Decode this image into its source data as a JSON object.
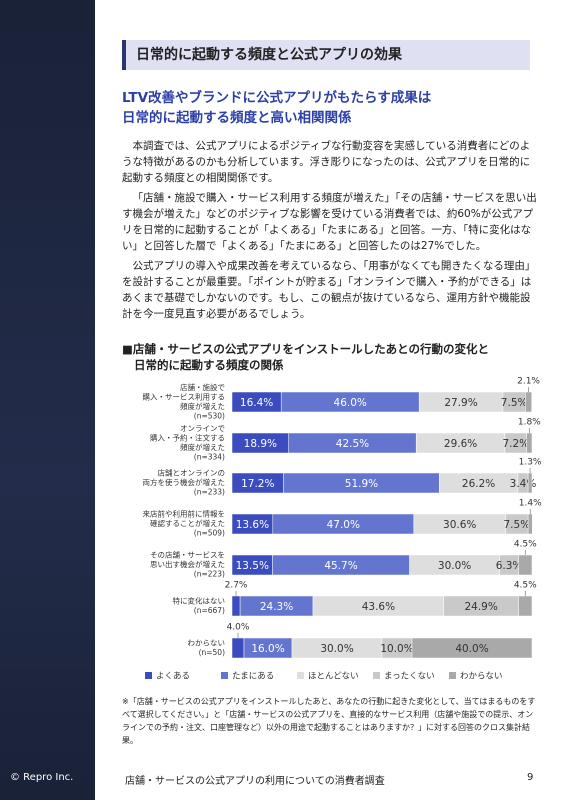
{
  "header": {
    "title": "日常的に起動する頻度と公式アプリの効果"
  },
  "subtitle": [
    "LTV改善やブランドに公式アプリがもたらす成果は",
    "日常的に起動する頻度と高い相関関係"
  ],
  "paragraphs": [
    "本調査では、公式アプリによるポジティブな行動変容を実感している消費者にどのような特徴があるのかも分析しています。浮き彫りになったのは、公式アプリを日常的に起動する頻度との相関関係です。",
    "「店舗・施設で購入・サービス利用する頻度が増えた」「その店舗・サービスを思い出す機会が増えた」などのポジティブな影響を受けている消費者では、約60%が公式アプリを日常的に起動することが「よくある」「たまにある」と回答。一方、「特に変化はない」と回答した層で「よくある」「たまにある」と回答したのは27%でした。",
    "公式アプリの導入や成果改善を考えているなら、「用事がなくても開きたくなる理由」を設計することが最重要。「ポイントが貯まる」「オンラインで購入・予約ができる」はあくまで基礎でしかないのです。もし、この観点が抜けているなら、運用方針や機能設計を今一度見直す必要があるでしょう。"
  ],
  "chart_data": {
    "type": "stacked_bar_horizontal",
    "title": [
      "■店舗・サービスの公式アプリをインストールしたあとの行動の変化と",
      "日常的に起動する頻度の関係"
    ],
    "categories": [
      [
        "店舗・施設で",
        "購入・サービス利用する",
        "頻度が増えた",
        "(n=530)"
      ],
      [
        "オンラインで",
        "購入・予約・注文する",
        "頻度が増えた",
        "(n=334)"
      ],
      [
        "店舗とオンラインの",
        "両方を使う機会が増えた",
        "(n=233)"
      ],
      [
        "来店前や利用前に情報を",
        "確認することが増えた",
        "(n=509)"
      ],
      [
        "その店舗・サービスを",
        "思い出す機会が増えた",
        "(n=223)"
      ],
      [
        "特に変化はない",
        "(n=667)"
      ],
      [
        "わからない",
        "(n=50)"
      ]
    ],
    "xlim": [
      0,
      100
    ],
    "series": [
      {
        "name": "よくある",
        "color": "#3b4cbf",
        "values": [
          16.4,
          18.9,
          17.2,
          13.6,
          13.5,
          2.7,
          4.0
        ],
        "value_labels": [
          "16.4%",
          "18.9%",
          "17.2%",
          "13.6%",
          "13.5%",
          "2.7%",
          "4.0%"
        ]
      },
      {
        "name": "たまにある",
        "color": "#6475cf",
        "values": [
          46.0,
          42.5,
          51.9,
          47.0,
          45.7,
          24.3,
          16.0
        ],
        "value_labels": [
          "46.0%",
          "42.5%",
          "51.9%",
          "47.0%",
          "45.7%",
          "24.3%",
          "16.0%"
        ]
      },
      {
        "name": "ほとんどない",
        "color": "#dedede",
        "values": [
          27.9,
          29.6,
          26.2,
          30.6,
          30.0,
          43.6,
          30.0
        ],
        "value_labels": [
          "27.9%",
          "29.6%",
          "26.2%",
          "30.6%",
          "30.0%",
          "43.6%",
          "30.0%"
        ]
      },
      {
        "name": "まったくない",
        "color": "#c9c9c9",
        "values": [
          7.5,
          7.2,
          3.4,
          7.5,
          6.3,
          24.9,
          10.0
        ],
        "value_labels": [
          "7.5%",
          "7.2%",
          "3.4%",
          "7.5%",
          "6.3%",
          "24.9%",
          "10.0%"
        ]
      },
      {
        "name": "わからない",
        "color": "#a9a9a9",
        "values": [
          2.1,
          1.8,
          1.3,
          1.4,
          4.5,
          4.5,
          40.0
        ],
        "value_labels": [
          "2.1%",
          "1.8%",
          "1.3%",
          "1.4%",
          "4.5%",
          "4.5%",
          "40.0%"
        ]
      }
    ]
  },
  "footnote": "※「店舗・サービスの公式アプリをインストールしたあと、あなたの行動に起きた変化として、当てはまるものをすべて選択してください。」と「店舗・サービスの公式アプリを、直接的なサービス利用（店舗や施設での提示、オンラインでの予約・注文、口座管理など）以外の用途で起動することはありますか？」に対する回答のクロス集計結果。",
  "footer": {
    "copyright": "© Repro Inc.",
    "report": "店舗・サービスの公式アプリの利用についての消費者調査",
    "page": "9"
  }
}
